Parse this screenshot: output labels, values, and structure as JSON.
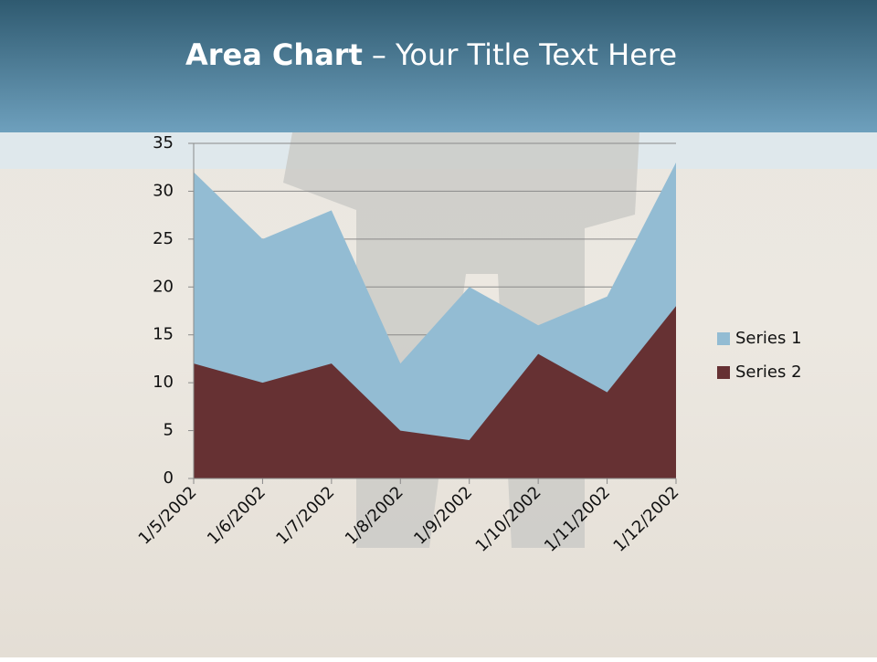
{
  "chart_data": {
    "type": "area",
    "title": "Area Chart",
    "title_suffix": "– Your Title Text Here",
    "categories": [
      "1/5/2002",
      "1/6/2002",
      "1/7/2002",
      "1/8/2002",
      "1/9/2002",
      "1/10/2002",
      "1/11/2002",
      "1/12/2002"
    ],
    "series": [
      {
        "name": "Series 1",
        "color": "#93bcd3",
        "values": [
          32,
          25,
          28,
          12,
          20,
          16,
          19,
          33
        ]
      },
      {
        "name": "Series 2",
        "color": "#663133",
        "values": [
          12,
          10,
          12,
          5,
          4,
          13,
          9,
          18
        ]
      }
    ],
    "ylim": [
      0,
      35
    ],
    "yticks": [
      0,
      5,
      10,
      15,
      20,
      25,
      30,
      35
    ],
    "grid": true,
    "legend": "right"
  }
}
